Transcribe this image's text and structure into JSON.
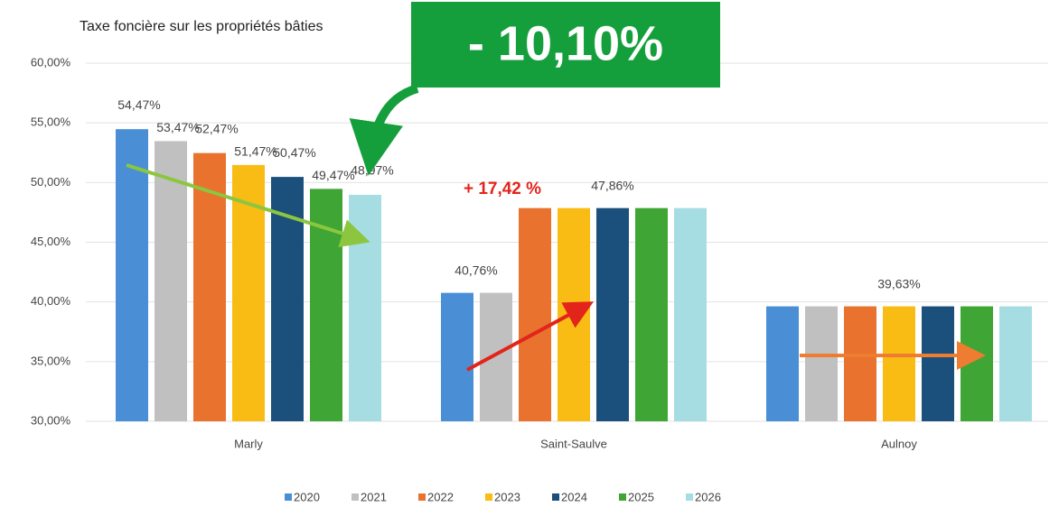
{
  "chart_data": {
    "type": "bar",
    "title": "Taxe foncière sur les propriétés bâties",
    "annotations": [
      "- 10,10%",
      "+ 17,42 %"
    ],
    "categories": [
      "Marly",
      "Saint-Saulve",
      "Aulnoy"
    ],
    "series": [
      {
        "name": "2020",
        "color": "#4a8fd6",
        "values": [
          54.47,
          40.76,
          39.63
        ],
        "value_labels": [
          "54,47%",
          "40,76%",
          null
        ]
      },
      {
        "name": "2021",
        "color": "#c0c0c0",
        "values": [
          53.47,
          40.76,
          39.63
        ],
        "value_labels": [
          "53,47%",
          null,
          null
        ]
      },
      {
        "name": "2022",
        "color": "#e8722e",
        "values": [
          52.47,
          47.86,
          39.63
        ],
        "value_labels": [
          "52,47%",
          null,
          null
        ]
      },
      {
        "name": "2023",
        "color": "#f8bc14",
        "values": [
          51.47,
          47.86,
          39.63
        ],
        "value_labels": [
          "51,47%",
          null,
          "39,63%"
        ]
      },
      {
        "name": "2024",
        "color": "#1b4f7c",
        "values": [
          50.47,
          47.86,
          39.63
        ],
        "value_labels": [
          "50,47%",
          "47,86%",
          null
        ]
      },
      {
        "name": "2025",
        "color": "#3fa535",
        "values": [
          49.47,
          47.86,
          39.63
        ],
        "value_labels": [
          "49,47%",
          null,
          null
        ]
      },
      {
        "name": "2026",
        "color": "#a6dde3",
        "values": [
          48.97,
          47.86,
          39.63
        ],
        "value_labels": [
          "48,97%",
          null,
          null
        ]
      }
    ],
    "ylim": [
      30,
      60
    ],
    "yticks": [
      {
        "value": 30,
        "label": "30,00%"
      },
      {
        "value": 35,
        "label": "35,00%"
      },
      {
        "value": 40,
        "label": "40,00%"
      },
      {
        "value": 45,
        "label": "45,00%"
      },
      {
        "value": 50,
        "label": "50,00%"
      },
      {
        "value": 55,
        "label": "55,00%"
      },
      {
        "value": 60,
        "label": "60,00%"
      }
    ],
    "grid": true
  }
}
